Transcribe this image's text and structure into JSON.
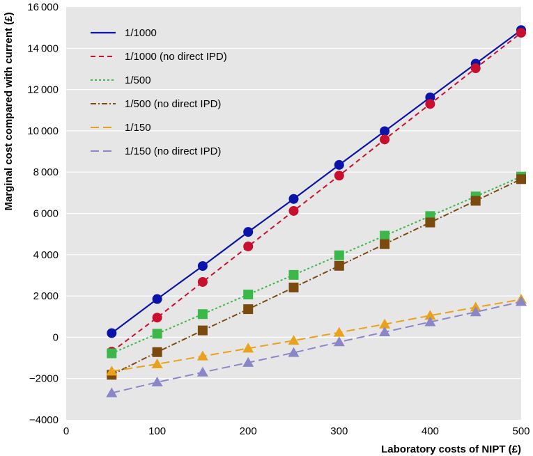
{
  "chart_data": {
    "type": "line",
    "xlabel": "Laboratory costs of NIPT (£)",
    "ylabel": "Marginal cost compared with current (£)",
    "xlim": [
      0,
      500
    ],
    "ylim": [
      -4000,
      16000
    ],
    "x_ticks": [
      0,
      100,
      200,
      300,
      400,
      500
    ],
    "x_tick_labels": [
      "0",
      "100",
      "200",
      "300",
      "400",
      "500"
    ],
    "y_ticks": [
      -4000,
      -2000,
      0,
      2000,
      4000,
      6000,
      8000,
      10000,
      12000,
      14000,
      16000
    ],
    "y_tick_labels": [
      "−4000",
      "−2000",
      "0",
      "2 000",
      "4 000",
      "6 000",
      "8 000",
      "10 000",
      "12 000",
      "14 000",
      "16 000"
    ],
    "grid": "horizontal",
    "background": "#e6e6e6",
    "legend_position": "top-left",
    "x": [
      50,
      100,
      150,
      200,
      250,
      300,
      350,
      400,
      450,
      500
    ],
    "series": [
      {
        "name": "1/1000",
        "color": "#0a14a8",
        "dash": "solid",
        "marker": "circle",
        "values": [
          200,
          1850,
          3450,
          5100,
          6700,
          8350,
          9980,
          11620,
          13250,
          14880
        ]
      },
      {
        "name": "1/1000 (no direct IPD)",
        "color": "#c8102e",
        "dash": "dashed",
        "marker": "circle",
        "values": [
          -700,
          950,
          2680,
          4400,
          6120,
          7830,
          9580,
          11300,
          13030,
          14750
        ]
      },
      {
        "name": "1/500",
        "color": "#3cb84a",
        "dash": "dotted",
        "marker": "square",
        "values": [
          -780,
          170,
          1120,
          2070,
          3020,
          3970,
          4920,
          5870,
          6820,
          7780
        ]
      },
      {
        "name": "1/500 (no direct IPD)",
        "color": "#7a4a0e",
        "dash": "dashdot",
        "marker": "square",
        "values": [
          -1820,
          -720,
          330,
          1360,
          2410,
          3460,
          4510,
          5560,
          6610,
          7660
        ]
      },
      {
        "name": "1/150",
        "color": "#e8a21b",
        "dash": "longdash",
        "marker": "triangle",
        "values": [
          -1650,
          -1300,
          -920,
          -540,
          -160,
          230,
          630,
          1050,
          1450,
          1830
        ]
      },
      {
        "name": "1/150 (no direct IPD)",
        "color": "#8a86c8",
        "dash": "longdash",
        "marker": "triangle",
        "values": [
          -2700,
          -2180,
          -1700,
          -1230,
          -750,
          -230,
          250,
          740,
          1220,
          1720
        ]
      }
    ]
  }
}
